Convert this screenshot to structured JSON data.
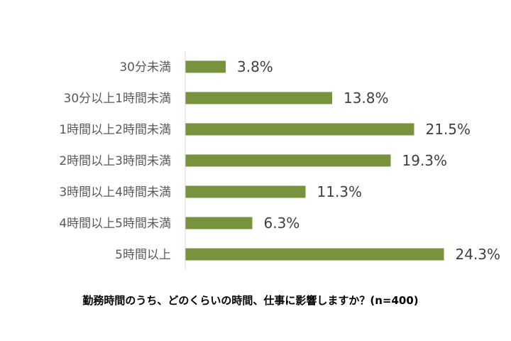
{
  "chart_data": {
    "type": "bar",
    "orientation": "horizontal",
    "categories": [
      "30分未満",
      "30分以上1時間未満",
      "1時間以上2時間未満",
      "2時間以上3時間未満",
      "3時間以上4時間未満",
      "4時間以上5時間未満",
      "5時間以上"
    ],
    "values": [
      3.8,
      13.8,
      21.5,
      19.3,
      11.3,
      6.3,
      24.3
    ],
    "value_labels": [
      "3.8%",
      "13.8%",
      "21.5%",
      "19.3%",
      "11.3%",
      "6.3%",
      "24.3%"
    ],
    "xlim": [
      0,
      25
    ],
    "grid": false,
    "legend": "none",
    "bar_color": "#77933C",
    "caption": "勤務時間のうち、どのくらいの時間、仕事に影響しますか？(n=400)"
  }
}
